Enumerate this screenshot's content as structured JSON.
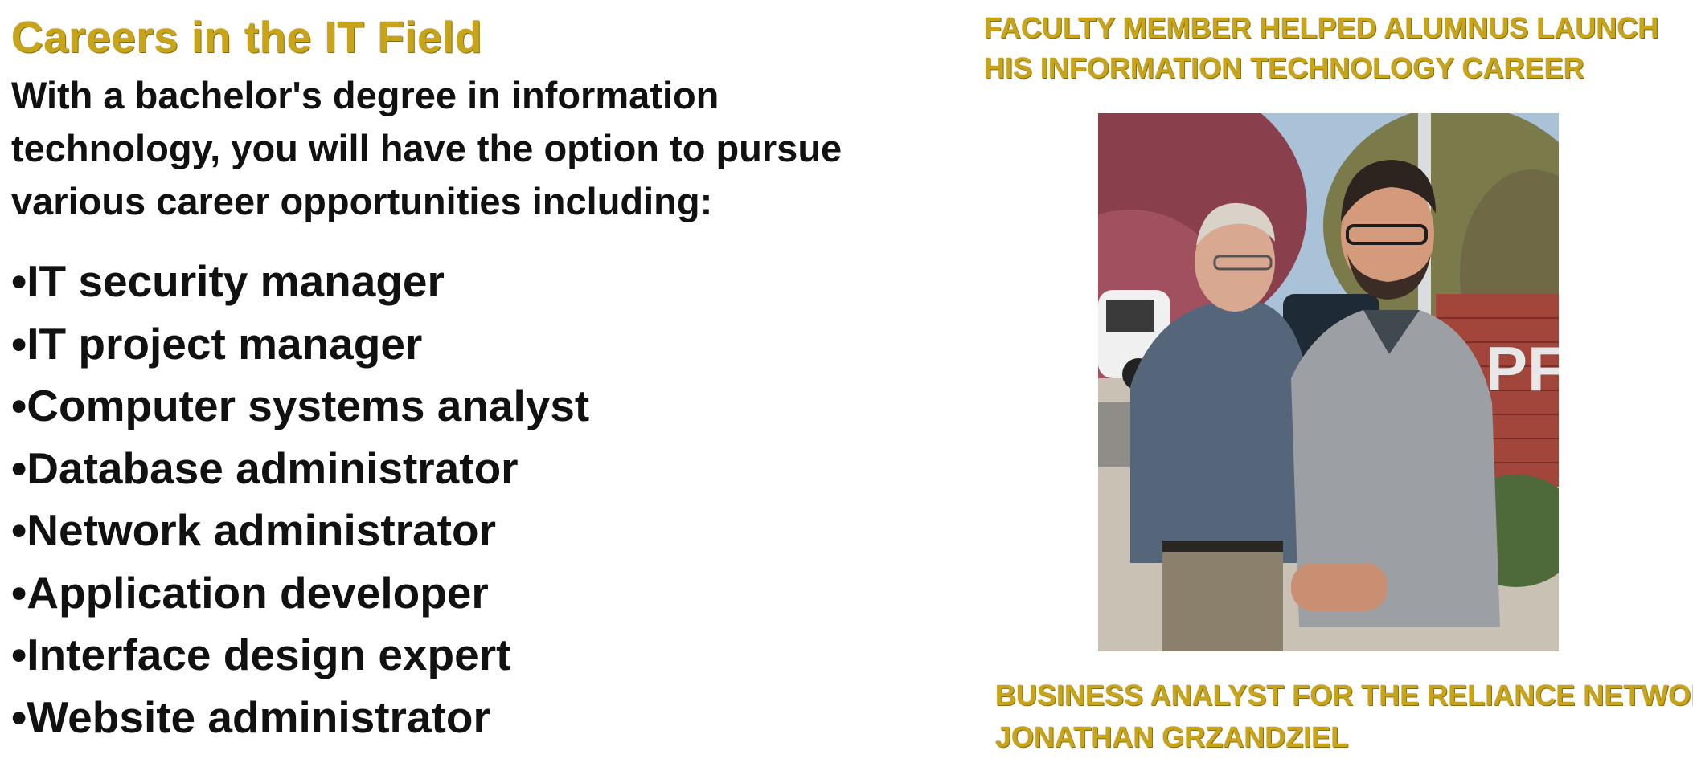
{
  "title": "Careers in the IT Field",
  "intro": "With a bachelor's degree in information technology, you will have the option to pursue various career opportunities including:",
  "careers": [
    "•IT security manager",
    "•IT project manager",
    "•Computer systems analyst",
    "•Database administrator",
    "•Network administrator",
    "•Application developer",
    "•Interface design expert",
    "•Website administrator"
  ],
  "headline": {
    "line1": "FACULTY MEMBER HELPED ALUMNUS LAUNCH",
    "line2": "HIS INFORMATION TECHNOLOGY CAREER"
  },
  "caption": {
    "line1": "BUSINESS ANALYST FOR THE RELIANCE NETWORK",
    "line2": "JONATHAN GRZANDZIEL"
  },
  "photo_sign_text": "PF",
  "colors": {
    "accent_gold": "#c8a418",
    "body_text": "#111111",
    "background": "#ffffff"
  }
}
